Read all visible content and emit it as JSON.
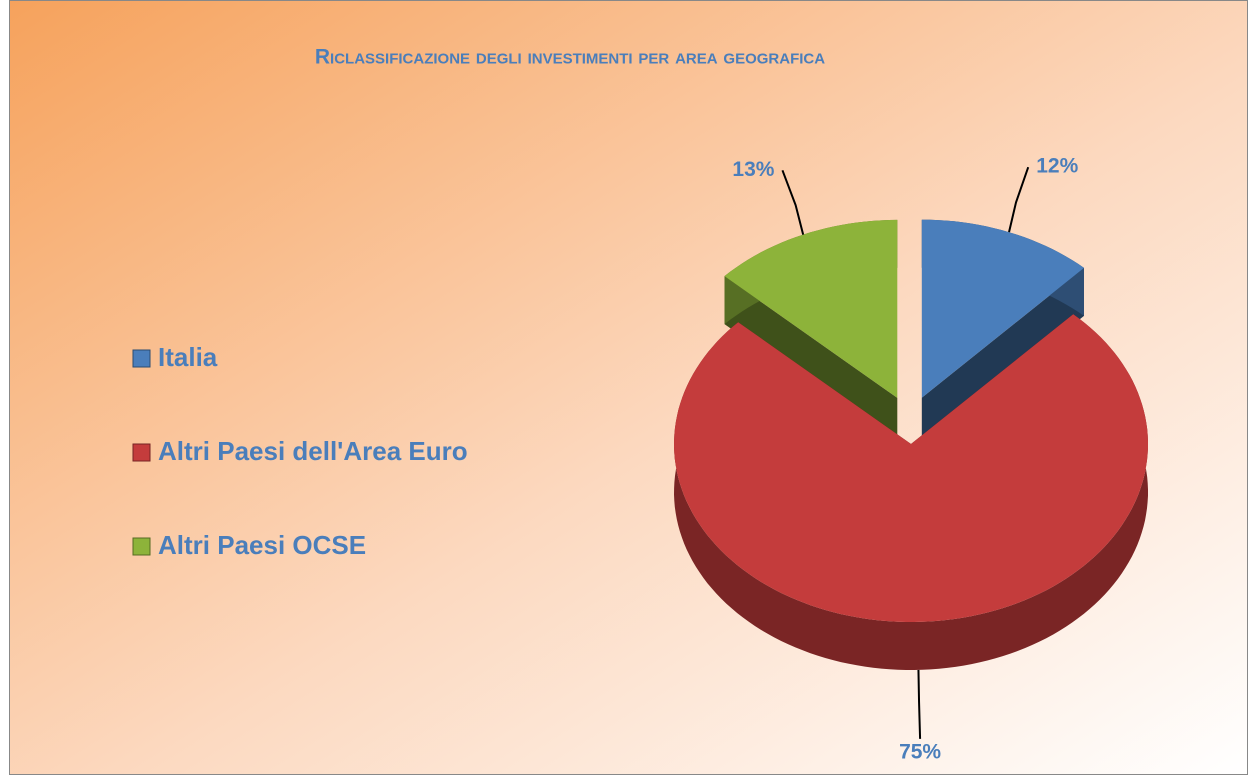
{
  "chart_data": {
    "type": "pie",
    "title": "Riclassificazione degli investimenti per area geografica",
    "categories": [
      "Italia",
      "Altri Paesi dell'Area Euro",
      "Altri Paesi OCSE"
    ],
    "values": [
      12,
      75,
      13
    ],
    "value_labels": [
      "12%",
      "75%",
      "13%"
    ],
    "colors": [
      "#4a7ebb",
      "#c43c3c",
      "#8db33a"
    ],
    "legend": "left"
  }
}
